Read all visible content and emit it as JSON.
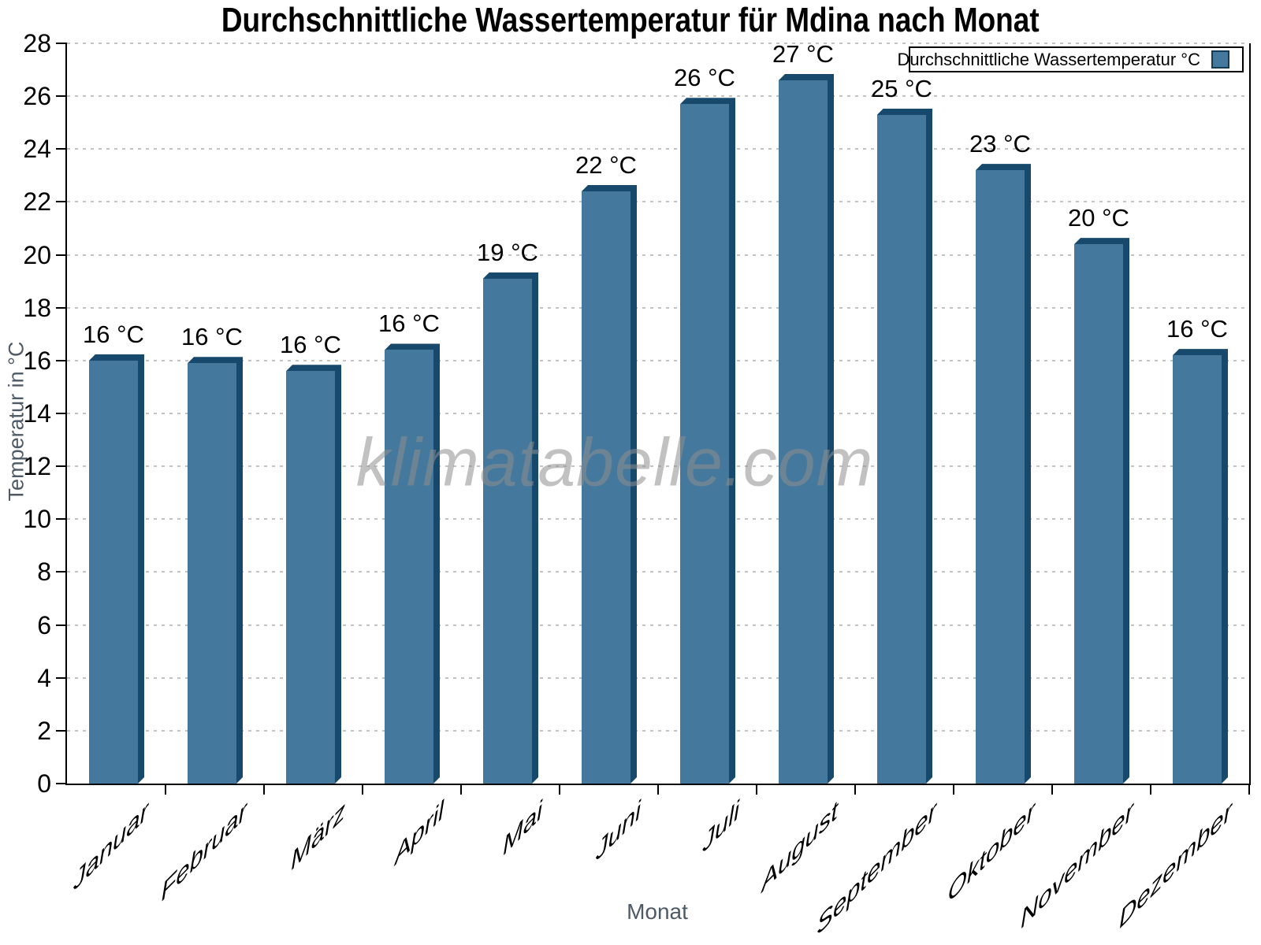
{
  "title": "Durchschnittliche Wassertemperatur für Mdina nach Monat",
  "watermark": "klimatabelle.com",
  "legend": {
    "label": "Durchschnittliche Wassertemperatur °C",
    "swatch_color": "#44789d",
    "position": "top-right"
  },
  "axes": {
    "xlabel": "Monat",
    "ylabel": "Temperatur in °C"
  },
  "chart_data": {
    "type": "bar",
    "title": "Durchschnittliche Wassertemperatur für Mdina nach Monat",
    "categories": [
      "Januar",
      "Februar",
      "März",
      "April",
      "Mai",
      "Juni",
      "Juli",
      "August",
      "September",
      "Oktober",
      "November",
      "Dezember"
    ],
    "values": [
      16.0,
      15.9,
      15.6,
      16.4,
      19.1,
      22.4,
      25.7,
      26.6,
      25.3,
      23.2,
      20.4,
      16.2
    ],
    "value_labels": [
      "16 °C",
      "16 °C",
      "16 °C",
      "16 °C",
      "19 °C",
      "22 °C",
      "26 °C",
      "27 °C",
      "25 °C",
      "23 °C",
      "20 °C",
      "16 °C"
    ],
    "series_name": "Durchschnittliche Wassertemperatur °C",
    "xlabel": "Monat",
    "ylabel": "Temperatur in °C",
    "ylim": [
      0,
      28
    ],
    "y_ticks": [
      0,
      2,
      4,
      6,
      8,
      10,
      12,
      14,
      16,
      18,
      20,
      22,
      24,
      26,
      28
    ],
    "grid": "horizontal-dotted",
    "legend_position": "top-right"
  },
  "colors": {
    "bar_face": "#44789d",
    "bar_edge": "#16496c",
    "swatch_border": "#123a54",
    "grid": "#c3c3c3",
    "axis": "#000000",
    "muted_text": "#4e5a66",
    "watermark": "#8f8f8f"
  }
}
